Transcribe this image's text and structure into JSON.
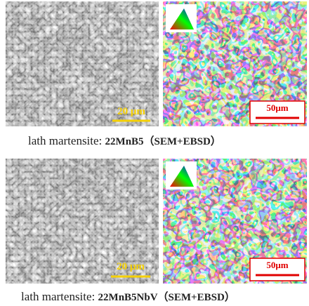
{
  "panels": [
    {
      "sem_scale": "20 μm",
      "ebsd_scale": "50μm",
      "caption_prefix": "lath martensite: ",
      "caption_material": "22MnB5（SEM+EBSD）"
    },
    {
      "sem_scale": "20 μm",
      "ebsd_scale": "50μm",
      "caption_prefix": "lath martensite: ",
      "caption_material": "22MnB5NbV（SEM+EBSD）"
    }
  ]
}
